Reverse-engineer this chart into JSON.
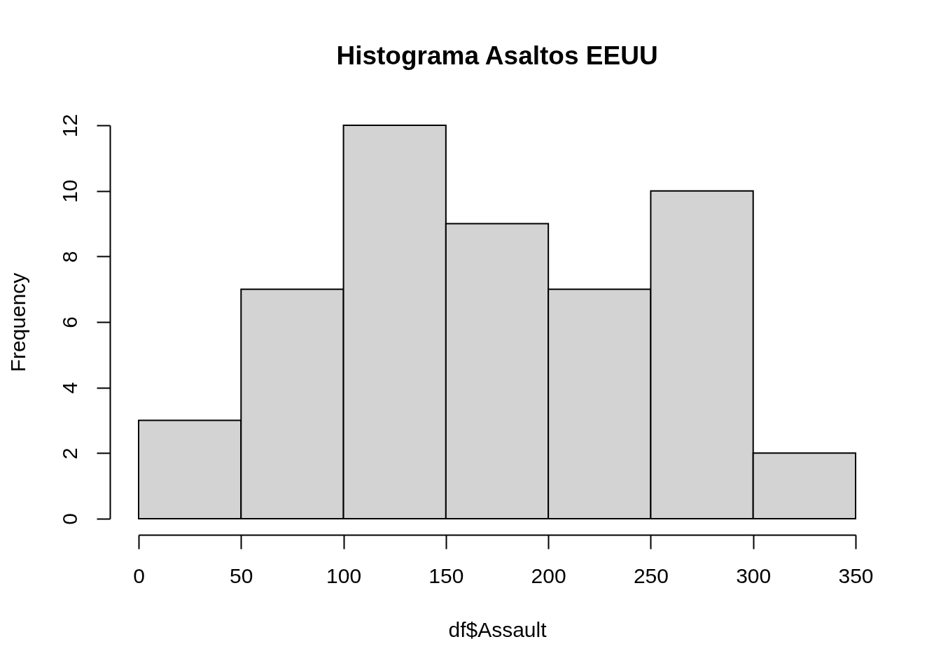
{
  "chart_data": {
    "type": "histogram",
    "title": "Histograma Asaltos EEUU",
    "xlabel": "df$Assault",
    "ylabel": "Frequency",
    "bins": [
      0,
      50,
      100,
      150,
      200,
      250,
      300,
      350
    ],
    "values": [
      3,
      7,
      12,
      9,
      7,
      10,
      2
    ],
    "color": "#d3d3d3",
    "xlim": [
      0,
      350
    ],
    "xticks": [
      0,
      50,
      100,
      150,
      200,
      250,
      300,
      350
    ],
    "ylim": [
      0,
      12
    ],
    "yticks": [
      0,
      2,
      4,
      6,
      8,
      10,
      12
    ]
  }
}
